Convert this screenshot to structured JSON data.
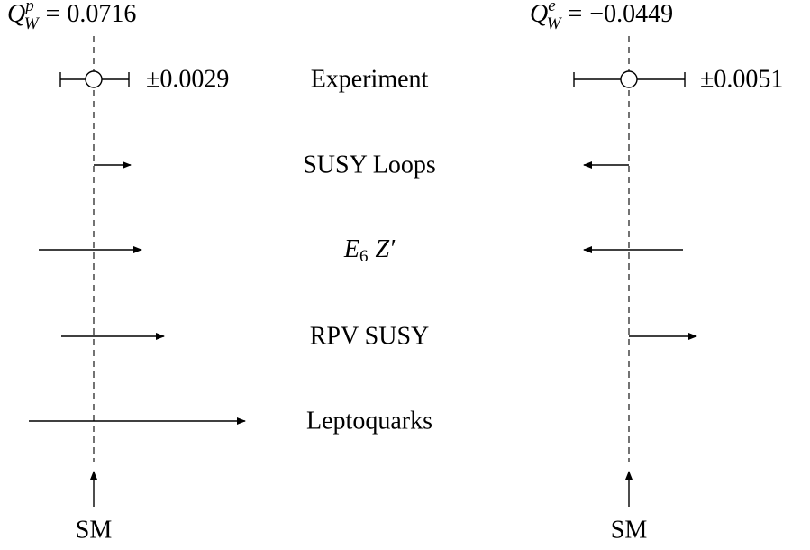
{
  "left": {
    "symbol": {
      "base": "Q",
      "sub": "W",
      "sup": "p"
    },
    "relation": "=",
    "value": "0.0716",
    "error": "±0.0029",
    "sm": "SM"
  },
  "right": {
    "symbol": {
      "base": "Q",
      "sub": "W",
      "sup": "e"
    },
    "relation": "=",
    "value": "−0.0449",
    "error": "±0.0051",
    "sm": "SM"
  },
  "rows": [
    "Experiment",
    "SUSY Loops",
    {
      "base": "E",
      "sub": "6",
      "rest": "Z′"
    },
    "RPV SUSY",
    "Leptoquarks"
  ]
}
